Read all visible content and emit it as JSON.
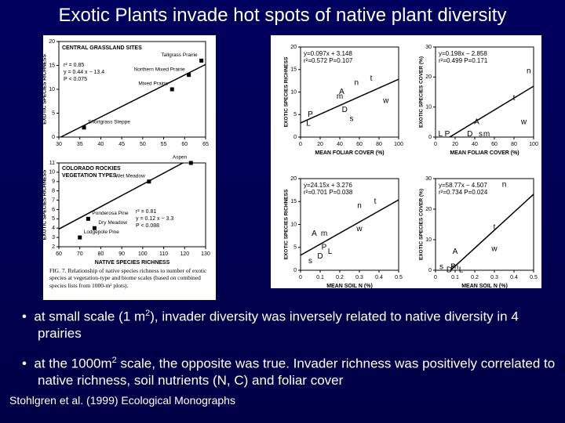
{
  "title": "Exotic Plants invade hot spots of native plant diversity",
  "figures": [
    {
      "panels": [
        {
          "title_lines": [
            "CENTRAL GRASSLAND SITES"
          ],
          "ylabel": "EXOTIC SPECIES RICHNESS",
          "xlim": [
            30,
            65
          ],
          "ylim": [
            0,
            20
          ],
          "xticks": [
            30,
            35,
            40,
            45,
            50,
            55,
            60,
            65
          ],
          "yticks": [
            0,
            5,
            10,
            15,
            20
          ],
          "stats": [
            "r² = 0.85",
            "y = 0.44 x − 13.4",
            "P < 0.075"
          ],
          "fit": {
            "slope": 0.44,
            "intercept": -13.4
          },
          "marker": "square",
          "points": [
            {
              "x": 36,
              "y": 2,
              "label": "Shortgrass Steppe"
            },
            {
              "x": 57,
              "y": 10,
              "label": "Mixed Prairie"
            },
            {
              "x": 61,
              "y": 13,
              "label": "Northern Mixed Prairie"
            },
            {
              "x": 64,
              "y": 16,
              "label": "Tallgrass Prairie"
            }
          ]
        },
        {
          "title_lines": [
            "COLORADO ROCKIES",
            "VEGETATION TYPES"
          ],
          "xlabel": "NATIVE SPECIES RICHNESS",
          "ylabel": "EXOTIC SPECIES RICHNESS",
          "xlim": [
            60,
            130
          ],
          "ylim": [
            2,
            11
          ],
          "xticks": [
            60,
            70,
            80,
            90,
            100,
            110,
            120,
            130
          ],
          "yticks": [
            2,
            3,
            4,
            5,
            6,
            7,
            8,
            9,
            10,
            11
          ],
          "stats": [
            "r² = 0.81",
            "y = 0.12 x − 3.3",
            "P < 0.088"
          ],
          "fit": {
            "slope": 0.12,
            "intercept": -3.3
          },
          "marker": "square",
          "points": [
            {
              "x": 70,
              "y": 3,
              "label": "Lodgepole Pine"
            },
            {
              "x": 77,
              "y": 4,
              "label": "Dry Meadow"
            },
            {
              "x": 74,
              "y": 5,
              "label": "Ponderosa Pine"
            },
            {
              "x": 103,
              "y": 9,
              "label": "Wet Meadow"
            },
            {
              "x": 123,
              "y": 11,
              "label": "Aspen"
            }
          ]
        }
      ],
      "caption": "FIG. 7. Relationship of native species richness to number of exotic species at vegetation-type and biome scales (based on combined species lists from 1000-m² plots)."
    },
    {
      "panels": [
        {
          "xlabel": "MEAN FOLIAR COVER (%)",
          "ylabel": "EXOTIC SPECIES RICHNESS",
          "xlim": [
            0,
            100
          ],
          "ylim": [
            0,
            20
          ],
          "xticks": [
            0,
            20,
            40,
            60,
            80,
            100
          ],
          "yticks": [
            0,
            5,
            10,
            15,
            20
          ],
          "stats": [
            "y=0.097x + 3.148",
            "r²=0.572  P=0.107"
          ],
          "fit": {
            "slope": 0.097,
            "intercept": 3.148
          },
          "marker": "letter",
          "points": [
            {
              "x": 8,
              "y": 3,
              "label": "L"
            },
            {
              "x": 10,
              "y": 5,
              "label": "P"
            },
            {
              "x": 40,
              "y": 9,
              "label": "m"
            },
            {
              "x": 42,
              "y": 10,
              "label": "A"
            },
            {
              "x": 45,
              "y": 6,
              "label": "D"
            },
            {
              "x": 52,
              "y": 4,
              "label": "s"
            },
            {
              "x": 57,
              "y": 12,
              "label": "n"
            },
            {
              "x": 72,
              "y": 13,
              "label": "t"
            },
            {
              "x": 87,
              "y": 8,
              "label": "w"
            }
          ]
        },
        {
          "xlabel": "MEAN FOLIAR COVER (%)",
          "ylabel": "EXOTIC SPECIES COVER (%)",
          "xlim": [
            0,
            100
          ],
          "ylim": [
            0,
            30
          ],
          "xticks": [
            0,
            20,
            40,
            60,
            80,
            100
          ],
          "yticks": [
            0,
            10,
            20,
            30
          ],
          "stats": [
            "y=0.198x − 2.858",
            "r²=0.499  P=0.171"
          ],
          "fit": {
            "slope": 0.198,
            "intercept": -2.858
          },
          "marker": "letter",
          "points": [
            {
              "x": 5,
              "y": 1,
              "label": "L"
            },
            {
              "x": 12,
              "y": 1,
              "label": "P"
            },
            {
              "x": 35,
              "y": 1,
              "label": "D"
            },
            {
              "x": 46,
              "y": 1,
              "label": "s"
            },
            {
              "x": 52,
              "y": 1,
              "label": "m"
            },
            {
              "x": 42,
              "y": 5,
              "label": "A"
            },
            {
              "x": 90,
              "y": 5,
              "label": "w"
            },
            {
              "x": 80,
              "y": 13,
              "label": "t"
            },
            {
              "x": 95,
              "y": 22,
              "label": "n"
            }
          ]
        },
        {
          "xlabel": "MEAN SOIL N (%)",
          "ylabel": "EXOTIC SPECIES RICHNESS",
          "xlim": [
            0,
            0.5
          ],
          "ylim": [
            0,
            20
          ],
          "xticks": [
            0,
            0.1,
            0.2,
            0.3,
            0.4,
            0.5
          ],
          "yticks": [
            0,
            5,
            10,
            15,
            20
          ],
          "stats": [
            "y=24.15x + 3.276",
            "r²=0.701  P=0.038"
          ],
          "fit": {
            "slope": 24.15,
            "intercept": 3.276
          },
          "marker": "letter",
          "points": [
            {
              "x": 0.05,
              "y": 2,
              "label": "s"
            },
            {
              "x": 0.1,
              "y": 3,
              "label": "D"
            },
            {
              "x": 0.12,
              "y": 5,
              "label": "P"
            },
            {
              "x": 0.15,
              "y": 4,
              "label": "L"
            },
            {
              "x": 0.07,
              "y": 8,
              "label": "A"
            },
            {
              "x": 0.12,
              "y": 8,
              "label": "m"
            },
            {
              "x": 0.3,
              "y": 9,
              "label": "w"
            },
            {
              "x": 0.3,
              "y": 14,
              "label": "n"
            },
            {
              "x": 0.38,
              "y": 15,
              "label": "t"
            }
          ]
        },
        {
          "xlabel": "MEAN SOIL N (%)",
          "ylabel": "EXOTIC SPECIES COVER (%)",
          "xlim": [
            0,
            0.5
          ],
          "ylim": [
            0,
            30
          ],
          "xticks": [
            0,
            0.1,
            0.2,
            0.3,
            0.4,
            0.5
          ],
          "yticks": [
            0,
            10,
            20,
            30
          ],
          "stats": [
            "y=58.77x − 4.507",
            "r²=0.734  P=0.024"
          ],
          "fit": {
            "slope": 58.77,
            "intercept": -4.507
          },
          "marker": "letter",
          "points": [
            {
              "x": 0.03,
              "y": 1,
              "label": "s"
            },
            {
              "x": 0.07,
              "y": 0,
              "label": "D"
            },
            {
              "x": 0.09,
              "y": 1,
              "label": "P"
            },
            {
              "x": 0.1,
              "y": 1,
              "label": "m"
            },
            {
              "x": 0.13,
              "y": 0,
              "label": "L"
            },
            {
              "x": 0.1,
              "y": 6,
              "label": "A"
            },
            {
              "x": 0.3,
              "y": 7,
              "label": "w"
            },
            {
              "x": 0.3,
              "y": 14,
              "label": "t"
            },
            {
              "x": 0.35,
              "y": 28,
              "label": "n"
            }
          ]
        }
      ]
    }
  ],
  "bullets": [
    {
      "parts": [
        "at small scale (1 m",
        "2",
        "), invader diversity was inversely related to native diversity in 4 prairies"
      ]
    },
    {
      "parts": [
        "at the 1000m",
        "2",
        " scale, the opposite was true. Invader richness was positively correlated to native richness, soil nutrients (N, C) and foliar cover"
      ]
    }
  ],
  "citation": "Stohlgren et al. (1999) Ecological Monographs"
}
